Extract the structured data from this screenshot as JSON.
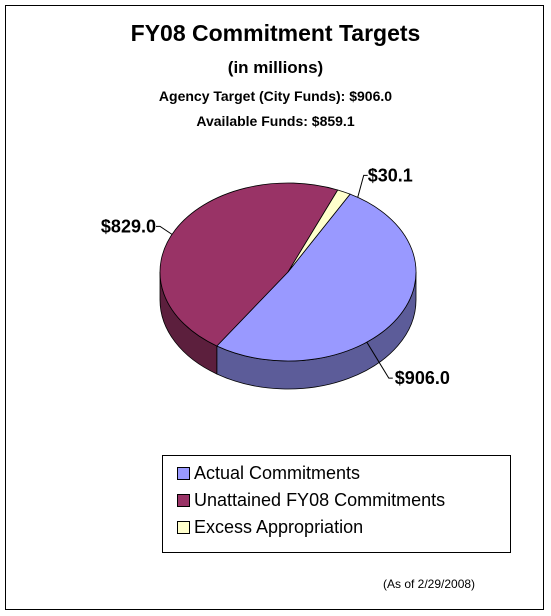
{
  "chart_data": {
    "type": "pie",
    "title": "FY08 Commitment Targets",
    "subtitle": "(in millions)",
    "annotations": [
      "Agency Target (City Funds): $906.0",
      "Available Funds: $859.1"
    ],
    "categories": [
      "Actual Commitments",
      "Unattained FY08 Commitments",
      "Excess Appropriation"
    ],
    "values": [
      906.0,
      829.0,
      30.1
    ],
    "data_labels": [
      "$906.0",
      "$829.0",
      "$30.1"
    ],
    "colors": [
      "#9999ff",
      "#993366",
      "#ffffcc"
    ],
    "side_colors": [
      "#5c5c99",
      "#5c1f3d",
      "#99997a"
    ],
    "legend_position": "bottom",
    "style": "3d",
    "footnote": "(As of 2/29/2008)"
  }
}
